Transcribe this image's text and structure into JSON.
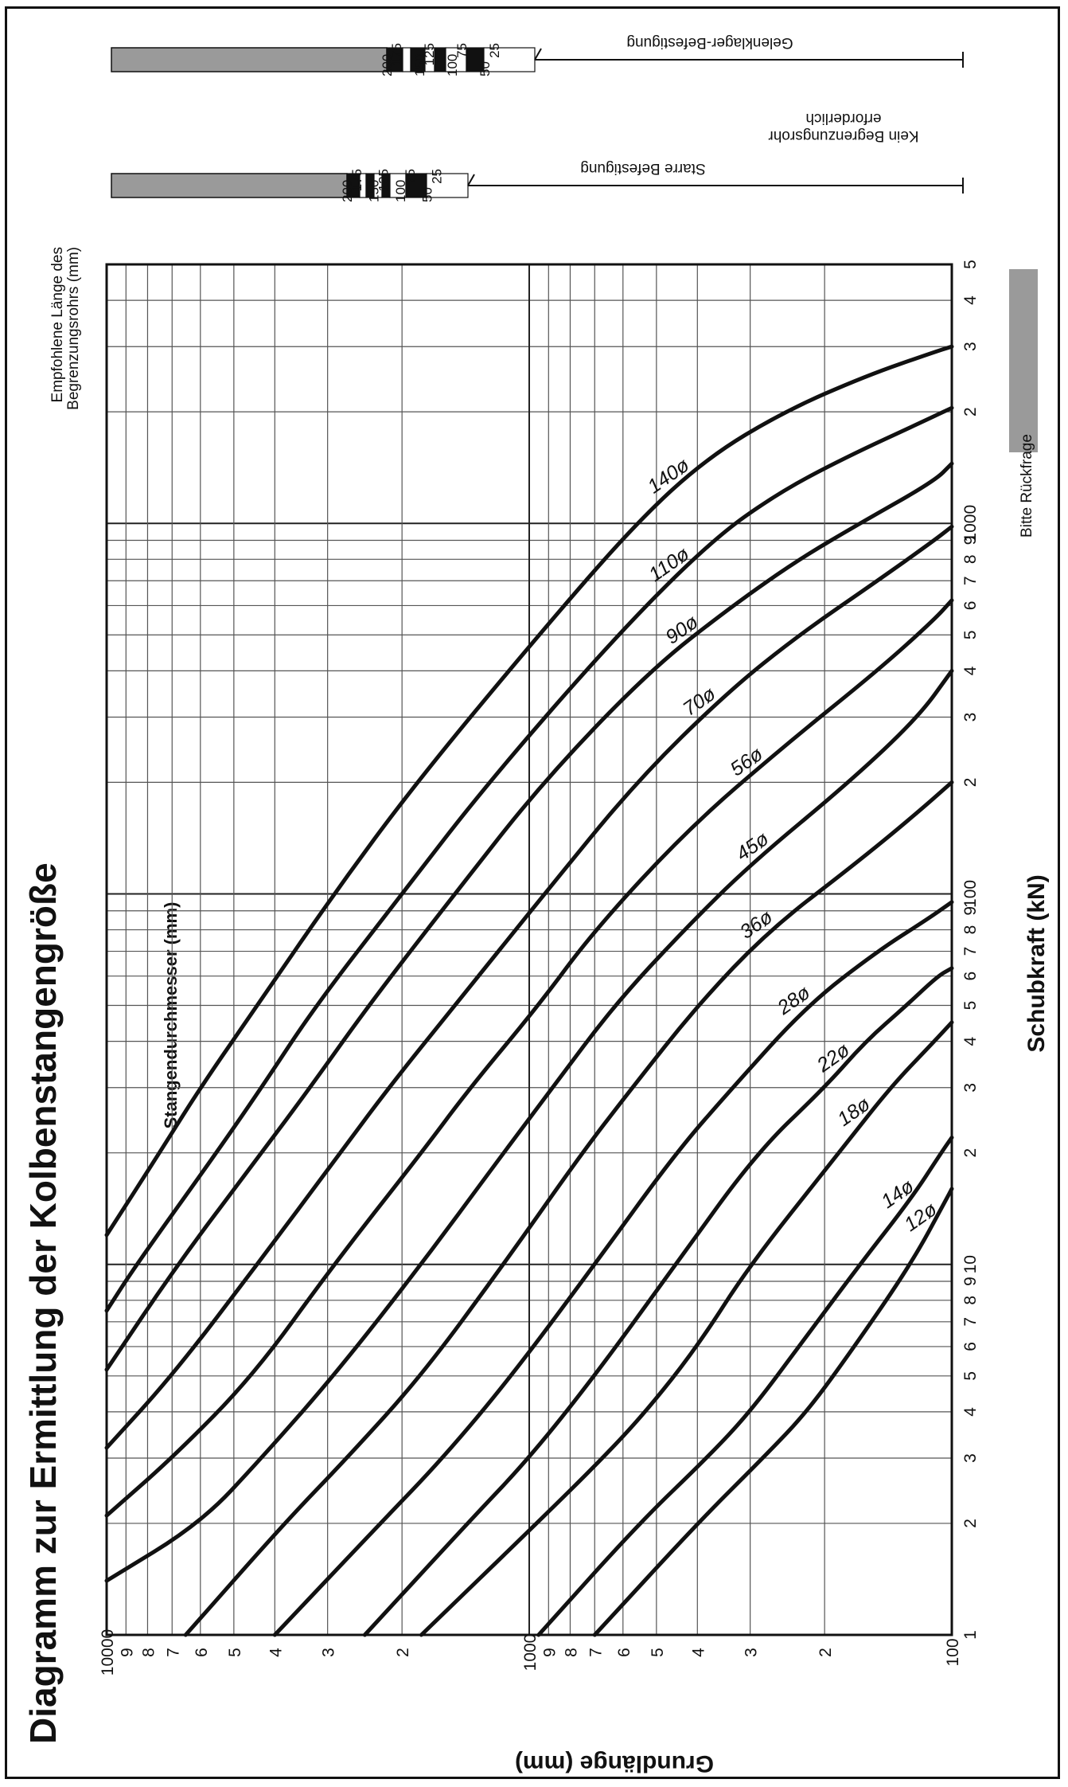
{
  "chart_data": {
    "type": "line",
    "title": "Diagramm zur Ermittlung der Kolbenstangengröße",
    "xlabel": "Schubkraft (kN)",
    "ylabel": "Grundlänge (mm)",
    "x_scale": "log",
    "y_scale": "log",
    "xlim": [
      1,
      5000
    ],
    "ylim": [
      100,
      10000
    ],
    "grid": true,
    "x_tick_labels": [
      {
        "v": 1,
        "t": "1"
      },
      {
        "v": 2,
        "t": "2"
      },
      {
        "v": 3,
        "t": "3"
      },
      {
        "v": 4,
        "t": "4"
      },
      {
        "v": 5,
        "t": "5"
      },
      {
        "v": 6,
        "t": "6"
      },
      {
        "v": 7,
        "t": "7"
      },
      {
        "v": 8,
        "t": "8"
      },
      {
        "v": 9,
        "t": "9"
      },
      {
        "v": 10,
        "t": "10"
      },
      {
        "v": 20,
        "t": "2"
      },
      {
        "v": 30,
        "t": "3"
      },
      {
        "v": 40,
        "t": "4"
      },
      {
        "v": 50,
        "t": "5"
      },
      {
        "v": 60,
        "t": "6"
      },
      {
        "v": 70,
        "t": "7"
      },
      {
        "v": 80,
        "t": "8"
      },
      {
        "v": 90,
        "t": "9"
      },
      {
        "v": 100,
        "t": "100"
      },
      {
        "v": 200,
        "t": "2"
      },
      {
        "v": 300,
        "t": "3"
      },
      {
        "v": 400,
        "t": "4"
      },
      {
        "v": 500,
        "t": "5"
      },
      {
        "v": 600,
        "t": "6"
      },
      {
        "v": 700,
        "t": "7"
      },
      {
        "v": 800,
        "t": "8"
      },
      {
        "v": 900,
        "t": "9"
      },
      {
        "v": 1000,
        "t": "1000"
      },
      {
        "v": 2000,
        "t": "2"
      },
      {
        "v": 3000,
        "t": "3"
      },
      {
        "v": 4000,
        "t": "4"
      },
      {
        "v": 5000,
        "t": "5"
      }
    ],
    "y_tick_labels": [
      {
        "v": 100,
        "t": "100"
      },
      {
        "v": 200,
        "t": "2"
      },
      {
        "v": 300,
        "t": "3"
      },
      {
        "v": 400,
        "t": "4"
      },
      {
        "v": 500,
        "t": "5"
      },
      {
        "v": 600,
        "t": "6"
      },
      {
        "v": 700,
        "t": "7"
      },
      {
        "v": 800,
        "t": "8"
      },
      {
        "v": 900,
        "t": "9"
      },
      {
        "v": 1000,
        "t": "1000"
      },
      {
        "v": 2000,
        "t": "2"
      },
      {
        "v": 3000,
        "t": "3"
      },
      {
        "v": 4000,
        "t": "4"
      },
      {
        "v": 5000,
        "t": "5"
      },
      {
        "v": 6000,
        "t": "6"
      },
      {
        "v": 7000,
        "t": "7"
      },
      {
        "v": 8000,
        "t": "8"
      },
      {
        "v": 9000,
        "t": "9"
      },
      {
        "v": 10000,
        "t": "10000"
      }
    ],
    "series_group_label": "Stangendurchmesser (mm)",
    "series": [
      {
        "name": "12ø",
        "label_at": 13,
        "points": [
          [
            1,
            700
          ],
          [
            2,
            400
          ],
          [
            3,
            280
          ],
          [
            4,
            220
          ],
          [
            6,
            170
          ],
          [
            10,
            125
          ],
          [
            15,
            103
          ],
          [
            16,
            100
          ]
        ]
      },
      {
        "name": "14ø",
        "label_at": 15,
        "points": [
          [
            1,
            950
          ],
          [
            2,
            550
          ],
          [
            3,
            380
          ],
          [
            4,
            300
          ],
          [
            6,
            230
          ],
          [
            10,
            165
          ],
          [
            15,
            125
          ],
          [
            20,
            106
          ],
          [
            22,
            100
          ]
        ]
      },
      {
        "name": "18ø",
        "label_at": 25,
        "points": [
          [
            1,
            1800
          ],
          [
            2,
            960
          ],
          [
            3,
            670
          ],
          [
            4,
            530
          ],
          [
            6,
            400
          ],
          [
            10,
            300
          ],
          [
            20,
            185
          ],
          [
            30,
            140
          ],
          [
            40,
            110
          ],
          [
            45,
            100
          ]
        ]
      },
      {
        "name": "22ø",
        "label_at": 35,
        "points": [
          [
            1,
            2450
          ],
          [
            2,
            1400
          ],
          [
            3,
            1000
          ],
          [
            5,
            700
          ],
          [
            10,
            450
          ],
          [
            20,
            290
          ],
          [
            30,
            200
          ],
          [
            40,
            160
          ],
          [
            50,
            128
          ],
          [
            60,
            108
          ],
          [
            63,
            100
          ]
        ]
      },
      {
        "name": "28ø",
        "label_at": 50,
        "points": [
          [
            1,
            4000
          ],
          [
            2,
            2250
          ],
          [
            3,
            1600
          ],
          [
            5,
            1100
          ],
          [
            10,
            700
          ],
          [
            20,
            450
          ],
          [
            30,
            330
          ],
          [
            50,
            220
          ],
          [
            70,
            150
          ],
          [
            85,
            115
          ],
          [
            95,
            100
          ]
        ]
      },
      {
        "name": "36ø",
        "label_at": 80,
        "points": [
          [
            1,
            6500
          ],
          [
            2,
            3800
          ],
          [
            3,
            2700
          ],
          [
            5,
            1800
          ],
          [
            10,
            1150
          ],
          [
            20,
            750
          ],
          [
            30,
            570
          ],
          [
            50,
            400
          ],
          [
            80,
            270
          ],
          [
            120,
            170
          ],
          [
            160,
            125
          ],
          [
            200,
            100
          ]
        ]
      },
      {
        "name": "45ø",
        "label_at": 130,
        "points": [
          [
            1.4,
            10000
          ],
          [
            2,
            6000
          ],
          [
            3,
            4300
          ],
          [
            5,
            2900
          ],
          [
            10,
            1800
          ],
          [
            20,
            1150
          ],
          [
            30,
            880
          ],
          [
            50,
            630
          ],
          [
            80,
            430
          ],
          [
            120,
            300
          ],
          [
            200,
            175
          ],
          [
            300,
            120
          ],
          [
            400,
            100
          ]
        ]
      },
      {
        "name": "56ø",
        "label_at": 220,
        "points": [
          [
            2.1,
            10000
          ],
          [
            3,
            7000
          ],
          [
            5,
            4500
          ],
          [
            10,
            2900
          ],
          [
            20,
            1800
          ],
          [
            30,
            1380
          ],
          [
            50,
            950
          ],
          [
            80,
            700
          ],
          [
            150,
            420
          ],
          [
            250,
            250
          ],
          [
            400,
            150
          ],
          [
            550,
            110
          ],
          [
            620,
            100
          ]
        ]
      },
      {
        "name": "70ø",
        "label_at": 320,
        "points": [
          [
            3.2,
            10000
          ],
          [
            5,
            7000
          ],
          [
            10,
            4400
          ],
          [
            20,
            2800
          ],
          [
            30,
            2150
          ],
          [
            50,
            1500
          ],
          [
            100,
            920
          ],
          [
            200,
            560
          ],
          [
            350,
            340
          ],
          [
            500,
            230
          ],
          [
            700,
            150
          ],
          [
            900,
            110
          ],
          [
            980,
            100
          ]
        ]
      },
      {
        "name": "90ø",
        "label_at": 500,
        "points": [
          [
            5.2,
            10000
          ],
          [
            10,
            6800
          ],
          [
            20,
            4300
          ],
          [
            30,
            3300
          ],
          [
            50,
            2400
          ],
          [
            100,
            1500
          ],
          [
            200,
            930
          ],
          [
            400,
            520
          ],
          [
            600,
            330
          ],
          [
            800,
            230
          ],
          [
            1000,
            165
          ],
          [
            1300,
            110
          ],
          [
            1450,
            100
          ]
        ]
      },
      {
        "name": "110ø",
        "label_at": 750,
        "points": [
          [
            7.5,
            10000
          ],
          [
            10,
            8500
          ],
          [
            20,
            5500
          ],
          [
            30,
            4300
          ],
          [
            50,
            3200
          ],
          [
            100,
            2000
          ],
          [
            200,
            1250
          ],
          [
            500,
            620
          ],
          [
            900,
            370
          ],
          [
            1200,
            260
          ],
          [
            1500,
            180
          ],
          [
            1900,
            115
          ],
          [
            2050,
            100
          ]
        ]
      },
      {
        "name": "140ø",
        "label_at": 1300,
        "points": [
          [
            12,
            10000
          ],
          [
            20,
            7500
          ],
          [
            30,
            6000
          ],
          [
            50,
            4400
          ],
          [
            100,
            2900
          ],
          [
            200,
            1850
          ],
          [
            500,
            950
          ],
          [
            1000,
            560
          ],
          [
            1500,
            380
          ],
          [
            2000,
            250
          ],
          [
            2500,
            160
          ],
          [
            2900,
            110
          ],
          [
            3000,
            100
          ]
        ]
      }
    ],
    "legend": {
      "label": "Bitte Rückfrage",
      "color": "#9a9a9a",
      "position": "bottom-right"
    },
    "side_panel": {
      "title_line1": "Empfohlene Länge des",
      "title_line2": "Begrenzungsrohrs (mm)",
      "note_line1": "Kein Begrenzungsrohr",
      "note_line2": "erforderlich",
      "bars": [
        {
          "name": "Starre Befestigung",
          "labels_inner": [
            "200",
            "150",
            "100",
            "50"
          ],
          "labels_outer": [
            "175",
            "125",
            "75",
            "25"
          ]
        },
        {
          "name": "Gelenklager-Befestigung",
          "labels_inner": [
            "200",
            "150",
            "100",
            "50"
          ],
          "labels_outer": [
            "175",
            "125",
            "75",
            "25"
          ]
        }
      ]
    }
  }
}
